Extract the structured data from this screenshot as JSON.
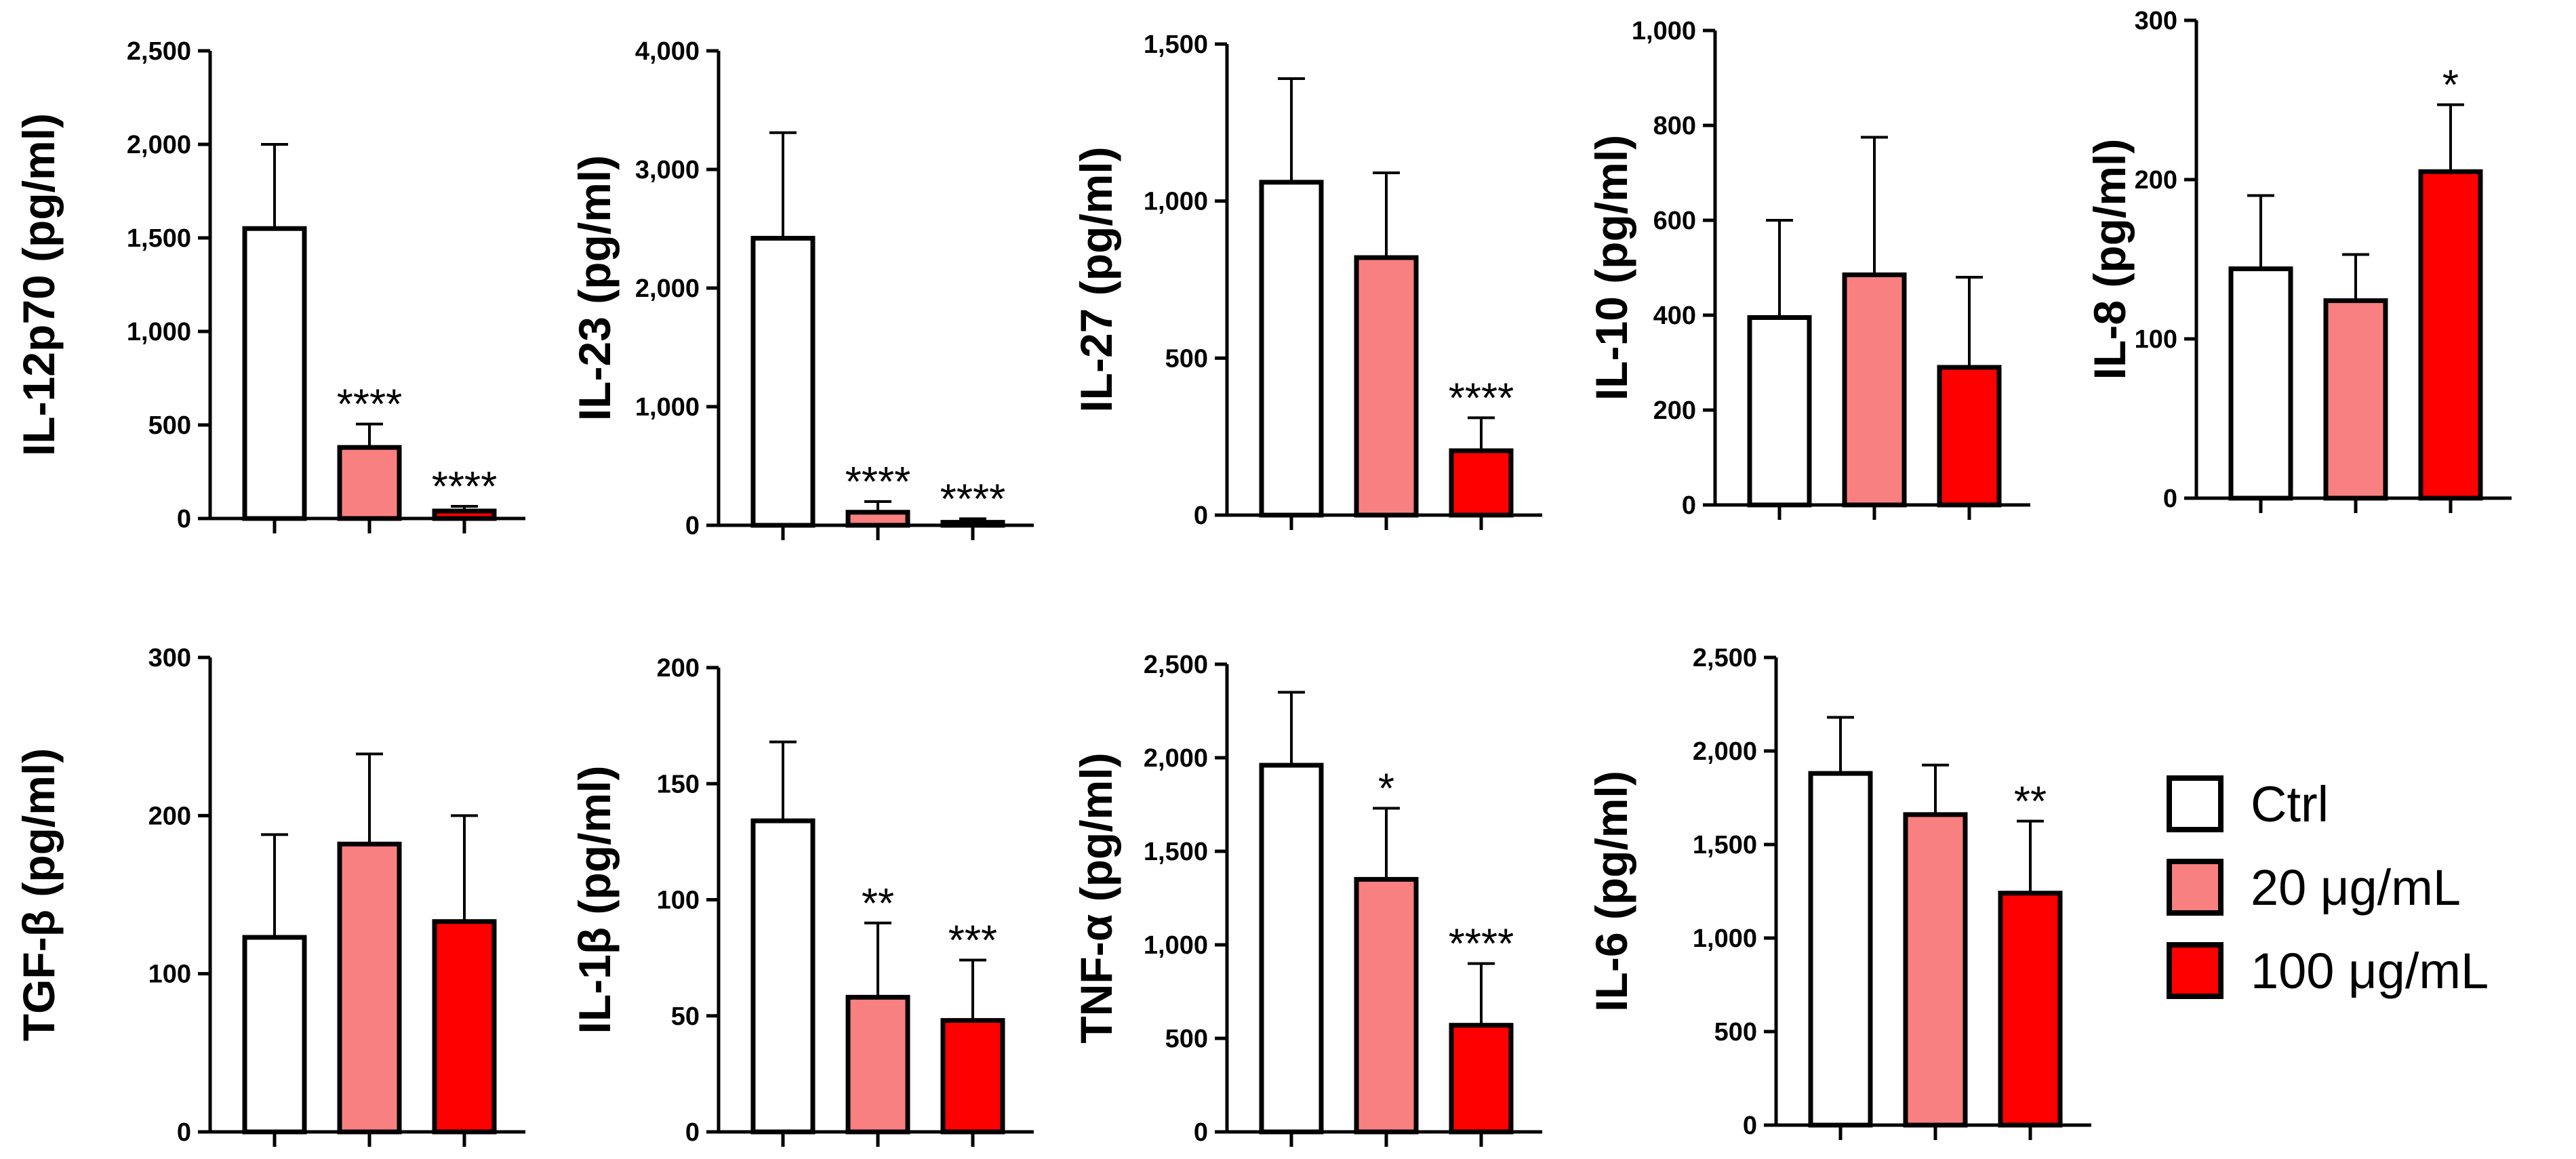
{
  "legend": [
    {
      "label": "Ctrl",
      "color": "#ffffff"
    },
    {
      "label": "20 μg/mL",
      "color": "#f98080"
    },
    {
      "label": "100 μg/mL",
      "color": "#ff0000"
    }
  ],
  "chart_data": [
    {
      "type": "bar",
      "ylabel": "IL-12p70  (pg/ml)",
      "ylim": [
        0,
        2500
      ],
      "ticks": [
        "0",
        "500",
        "1,000",
        "1,500",
        "2,000",
        "2,500"
      ],
      "categories": [
        "Ctrl",
        "20 μg/mL",
        "100 μg/mL"
      ],
      "values": [
        1550,
        380,
        40
      ],
      "errors": [
        450,
        125,
        25
      ],
      "sig": [
        "",
        "****",
        "****"
      ]
    },
    {
      "type": "bar",
      "ylabel": "IL-23  (pg/ml)",
      "ylim": [
        0,
        4000
      ],
      "ticks": [
        "0",
        "1,000",
        "2,000",
        "3,000",
        "4,000"
      ],
      "categories": [
        "Ctrl",
        "20 μg/mL",
        "100 μg/mL"
      ],
      "values": [
        2420,
        110,
        25
      ],
      "errors": [
        890,
        90,
        30
      ],
      "sig": [
        "",
        "****",
        "****"
      ]
    },
    {
      "type": "bar",
      "ylabel": "IL-27  (pg/ml)",
      "ylim": [
        0,
        1500
      ],
      "ticks": [
        "0",
        "500",
        "1,000",
        "1,500"
      ],
      "categories": [
        "Ctrl",
        "20 μg/mL",
        "100 μg/mL"
      ],
      "values": [
        1060,
        820,
        205
      ],
      "errors": [
        330,
        270,
        105
      ],
      "sig": [
        "",
        "",
        "****"
      ]
    },
    {
      "type": "bar",
      "ylabel": "IL-10  (pg/ml)",
      "ylim": [
        0,
        1000
      ],
      "ticks": [
        "0",
        "200",
        "400",
        "600",
        "800",
        "1,000"
      ],
      "categories": [
        "Ctrl",
        "20 μg/mL",
        "100 μg/mL"
      ],
      "values": [
        395,
        485,
        290
      ],
      "errors": [
        205,
        290,
        190
      ],
      "sig": [
        "",
        "",
        ""
      ]
    },
    {
      "type": "bar",
      "ylabel": "IL-8  (pg/ml)",
      "ylim": [
        0,
        300
      ],
      "ticks": [
        "0",
        "100",
        "200",
        "300"
      ],
      "categories": [
        "Ctrl",
        "20 μg/mL",
        "100 μg/mL"
      ],
      "values": [
        144,
        124,
        205
      ],
      "errors": [
        46,
        29,
        42
      ],
      "sig": [
        "",
        "",
        "*"
      ]
    },
    {
      "type": "bar",
      "ylabel": "TGF-β  (pg/ml)",
      "ylim": [
        0,
        300
      ],
      "ticks": [
        "0",
        "100",
        "200",
        "300"
      ],
      "categories": [
        "Ctrl",
        "20 μg/mL",
        "100 μg/mL"
      ],
      "values": [
        123,
        182,
        133
      ],
      "errors": [
        65,
        57,
        67
      ],
      "sig": [
        "",
        "",
        ""
      ]
    },
    {
      "type": "bar",
      "ylabel": "IL-1β  (pg/ml)",
      "ylim": [
        0,
        200
      ],
      "ticks": [
        "0",
        "50",
        "100",
        "150",
        "200"
      ],
      "categories": [
        "Ctrl",
        "20 μg/mL",
        "100 μg/mL"
      ],
      "values": [
        134,
        58,
        48
      ],
      "errors": [
        34,
        32,
        26
      ],
      "sig": [
        "",
        "**",
        "***"
      ]
    },
    {
      "type": "bar",
      "ylabel": "TNF-α  (pg/ml)",
      "ylim": [
        0,
        2500
      ],
      "ticks": [
        "0",
        "500",
        "1,000",
        "1,500",
        "2,000",
        "2,500"
      ],
      "categories": [
        "Ctrl",
        "20 μg/mL",
        "100 μg/mL"
      ],
      "values": [
        1960,
        1350,
        570
      ],
      "errors": [
        390,
        380,
        330
      ],
      "sig": [
        "",
        "*",
        "****"
      ]
    },
    {
      "type": "bar",
      "ylabel": "IL-6  (pg/ml)",
      "ylim": [
        0,
        2500
      ],
      "ticks": [
        "0",
        "500",
        "1,000",
        "1,500",
        "2,000",
        "2,500"
      ],
      "categories": [
        "Ctrl",
        "20 μg/mL",
        "100 μg/mL"
      ],
      "values": [
        1880,
        1660,
        1240
      ],
      "errors": [
        300,
        265,
        385
      ],
      "sig": [
        "",
        "",
        "**"
      ]
    }
  ]
}
